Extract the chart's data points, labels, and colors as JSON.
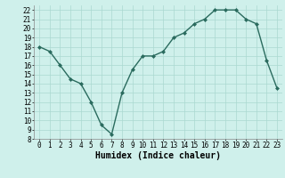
{
  "x": [
    0,
    1,
    2,
    3,
    4,
    5,
    6,
    7,
    8,
    9,
    10,
    11,
    12,
    13,
    14,
    15,
    16,
    17,
    18,
    19,
    20,
    21,
    22,
    23
  ],
  "y": [
    18,
    17.5,
    16,
    14.5,
    14,
    12,
    9.5,
    8.5,
    13,
    15.5,
    17,
    17,
    17.5,
    19,
    19.5,
    20.5,
    21,
    22,
    22,
    22,
    21,
    20.5,
    16.5,
    13.5
  ],
  "line_color": "#2a6b5e",
  "marker": "D",
  "marker_size": 2,
  "line_width": 1.0,
  "xlabel": "Humidex (Indice chaleur)",
  "xlim": [
    -0.5,
    23.5
  ],
  "ylim": [
    8,
    22.5
  ],
  "yticks": [
    8,
    9,
    10,
    11,
    12,
    13,
    14,
    15,
    16,
    17,
    18,
    19,
    20,
    21,
    22
  ],
  "xticks": [
    0,
    1,
    2,
    3,
    4,
    5,
    6,
    7,
    8,
    9,
    10,
    11,
    12,
    13,
    14,
    15,
    16,
    17,
    18,
    19,
    20,
    21,
    22,
    23
  ],
  "bg_color": "#cff0eb",
  "grid_color": "#aad8d0",
  "tick_fontsize": 5.5,
  "label_fontsize": 7,
  "fig_bg_color": "#cff0eb"
}
